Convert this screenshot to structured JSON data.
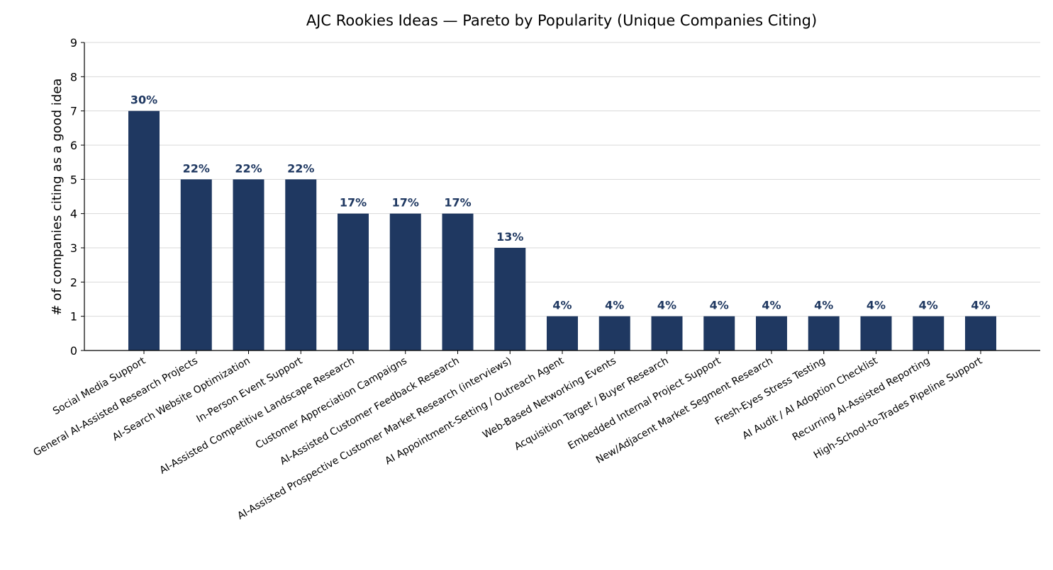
{
  "chart_data": {
    "type": "bar",
    "title": "AJC Rookies Ideas — Pareto by Popularity (Unique Companies Citing)",
    "xlabel": "",
    "ylabel": "# of companies citing as a good idea",
    "ylim": [
      0,
      9
    ],
    "yticks": [
      "0",
      "1",
      "2",
      "3",
      "4",
      "5",
      "6",
      "7",
      "8",
      "9"
    ],
    "grid": "horizontal",
    "bar_color": "#1f3861",
    "label_color": "#1f3861",
    "categories": [
      "Social Media Support",
      "General AI-Assisted Research Projects",
      "AI-Search Website Optimization",
      "In-Person Event Support",
      "AI-Assisted Competitive Landscape Research",
      "Customer Appreciation Campaigns",
      "AI-Assisted Customer Feedback Research",
      "AI-Assisted Prospective Customer Market Research (interviews)",
      "AI Appointment-Setting / Outreach Agent",
      "Web-Based Networking Events",
      "Acquisition Target / Buyer Research",
      "Embedded Internal Project Support",
      "New/Adjacent Market Segment Research",
      "Fresh-Eyes Stress Testing",
      "AI Audit / AI Adoption Checklist",
      "Recurring AI-Assisted Reporting",
      "High-School-to-Trades Pipeline Support"
    ],
    "values": [
      7,
      5,
      5,
      5,
      4,
      4,
      4,
      3,
      1,
      1,
      1,
      1,
      1,
      1,
      1,
      1,
      1
    ],
    "data_labels": [
      "30%",
      "22%",
      "22%",
      "22%",
      "17%",
      "17%",
      "17%",
      "13%",
      "4%",
      "4%",
      "4%",
      "4%",
      "4%",
      "4%",
      "4%",
      "4%",
      "4%"
    ]
  }
}
